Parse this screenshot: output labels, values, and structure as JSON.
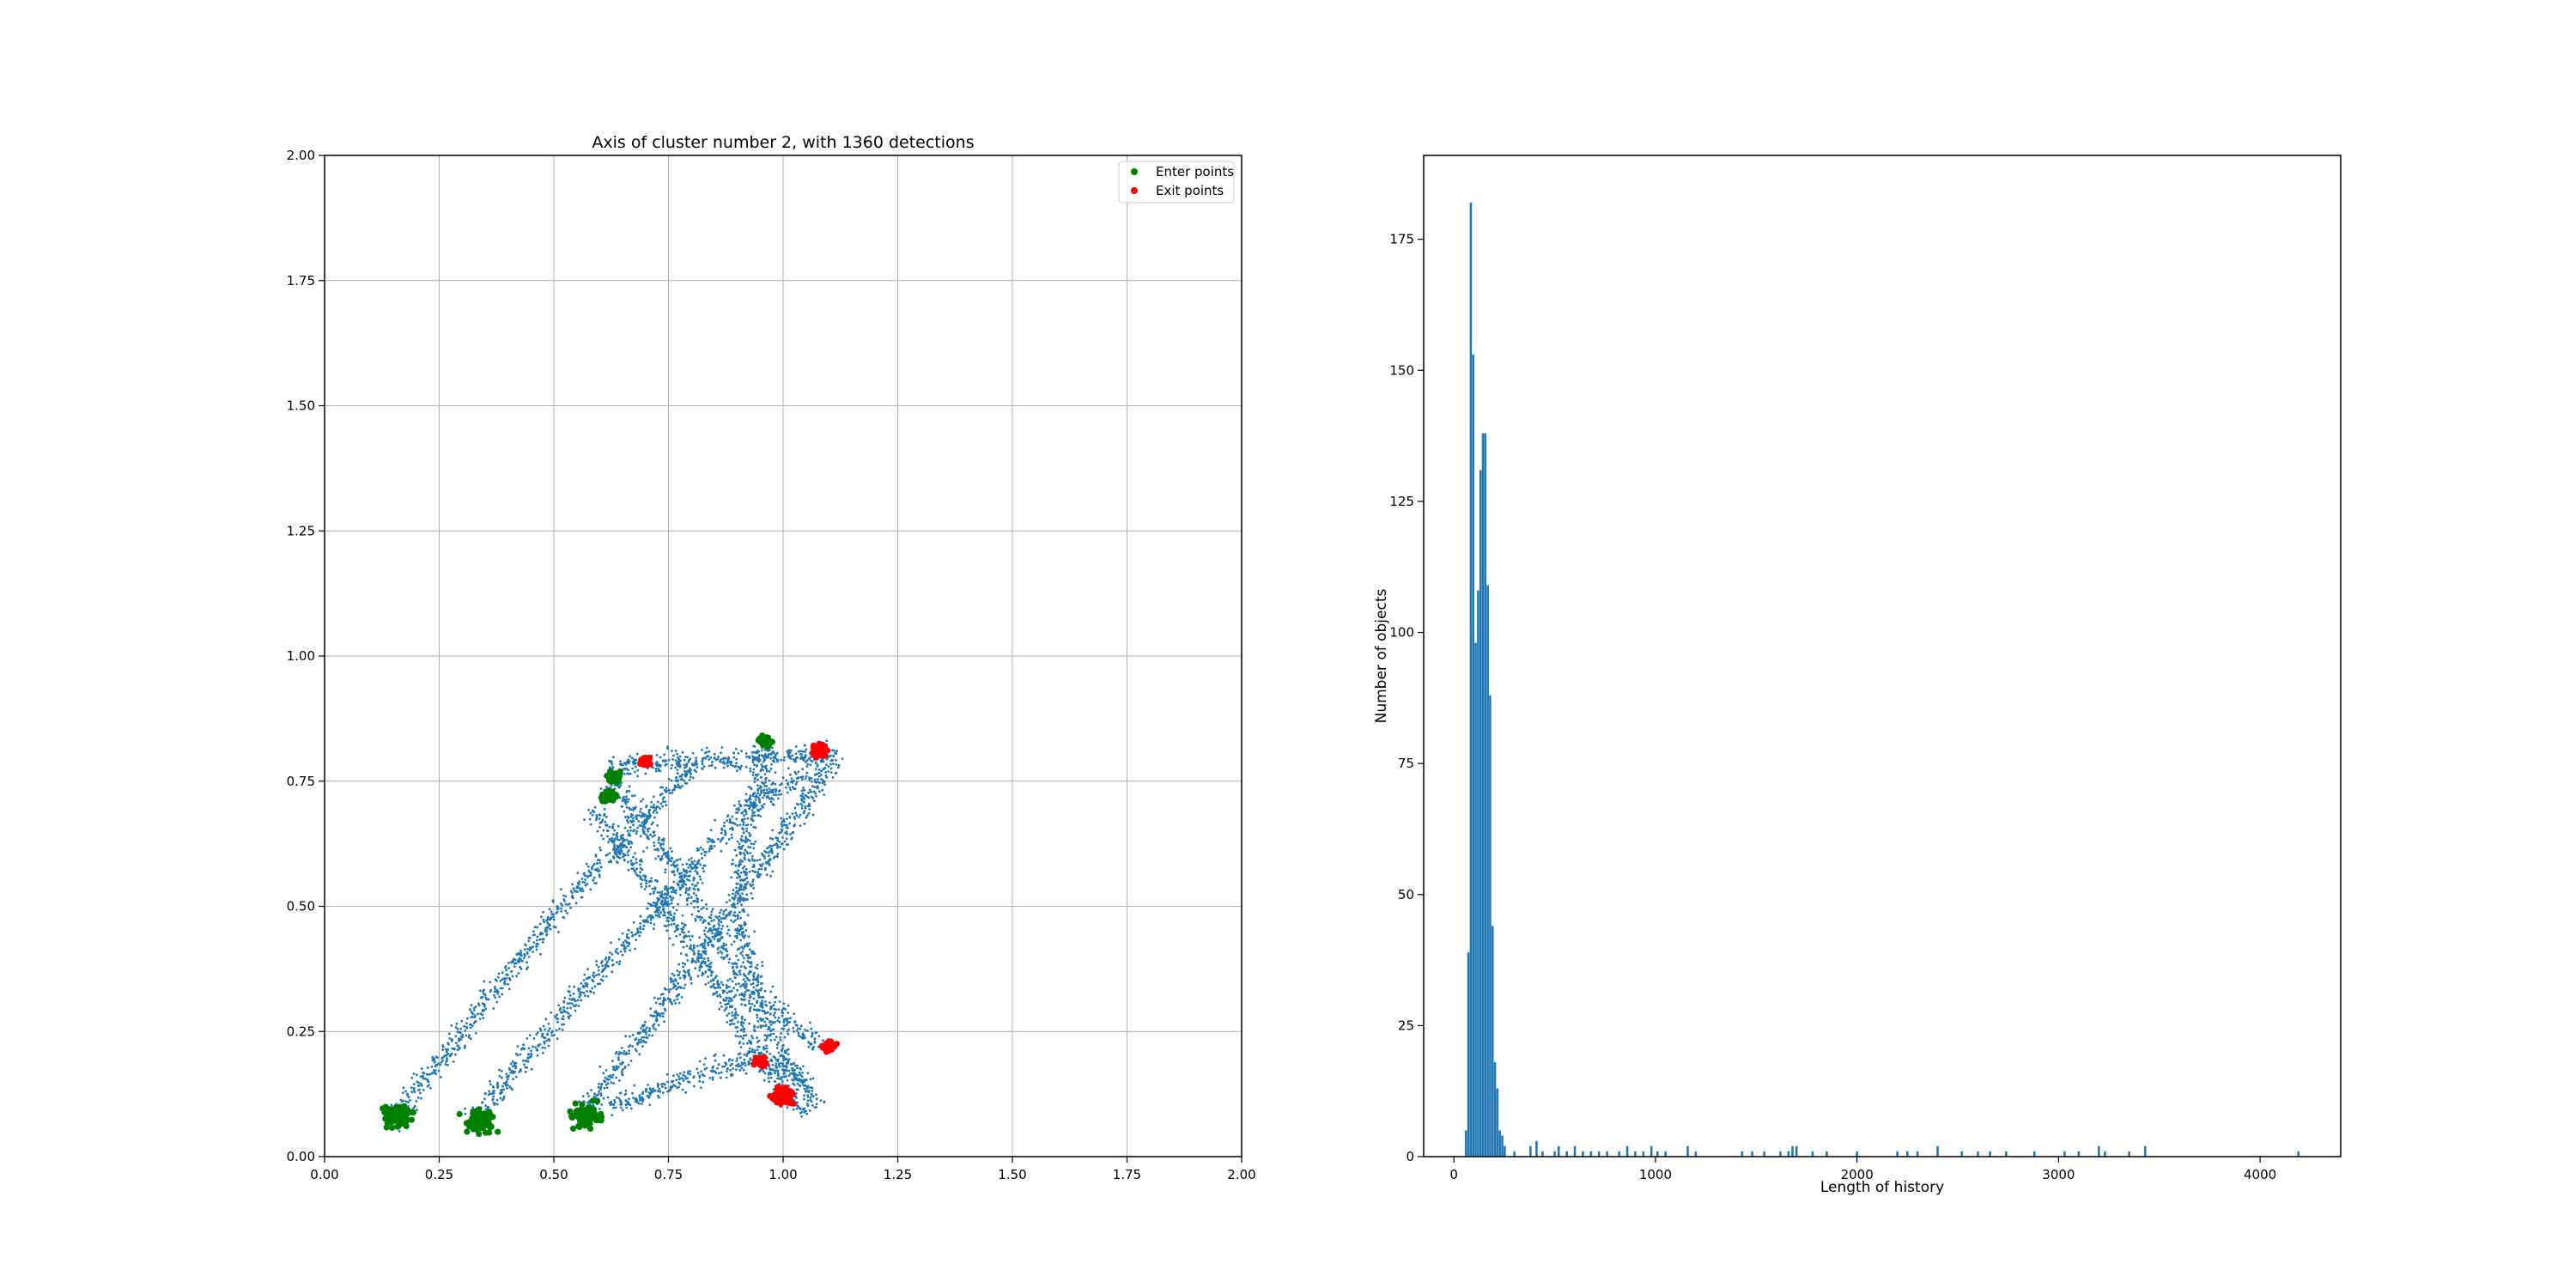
{
  "chart_data": [
    {
      "type": "scatter",
      "title": "Axis of cluster number 2, with 1360 detections",
      "xlabel": "",
      "ylabel": "",
      "xlim": [
        0,
        2
      ],
      "ylim": [
        0,
        2
      ],
      "xticks": [
        "0.00",
        "0.25",
        "0.50",
        "0.75",
        "1.00",
        "1.25",
        "1.50",
        "1.75",
        "2.00"
      ],
      "yticks": [
        "0.00",
        "0.25",
        "0.50",
        "0.75",
        "1.00",
        "1.25",
        "1.50",
        "1.75",
        "2.00"
      ],
      "grid": true,
      "legend_position": "top-right",
      "legend": [
        {
          "label": "Enter points",
          "color": "#008000"
        },
        {
          "label": "Exit points",
          "color": "#ff0000"
        }
      ],
      "trajectory_color": "#1f77b4",
      "trajectory_bands": [
        [
          [
            0.14,
            0.06
          ],
          [
            0.3,
            0.25
          ],
          [
            0.5,
            0.48
          ],
          [
            0.65,
            0.63
          ],
          [
            0.8,
            0.78
          ]
        ],
        [
          [
            0.32,
            0.07
          ],
          [
            0.55,
            0.32
          ],
          [
            0.75,
            0.52
          ],
          [
            0.92,
            0.7
          ],
          [
            1.1,
            0.8
          ]
        ],
        [
          [
            0.55,
            0.07
          ],
          [
            0.7,
            0.25
          ],
          [
            0.85,
            0.45
          ],
          [
            1.0,
            0.64
          ],
          [
            1.12,
            0.81
          ]
        ],
        [
          [
            0.62,
            0.78
          ],
          [
            0.8,
            0.79
          ],
          [
            1.0,
            0.8
          ],
          [
            1.1,
            0.81
          ]
        ],
        [
          [
            0.62,
            0.75
          ],
          [
            0.75,
            0.6
          ],
          [
            0.88,
            0.4
          ],
          [
            1.0,
            0.2
          ],
          [
            1.08,
            0.1
          ]
        ],
        [
          [
            0.97,
            0.82
          ],
          [
            0.92,
            0.65
          ],
          [
            0.9,
            0.48
          ],
          [
            0.95,
            0.32
          ],
          [
            1.08,
            0.22
          ]
        ],
        [
          [
            0.58,
            0.7
          ],
          [
            0.7,
            0.55
          ],
          [
            0.85,
            0.35
          ],
          [
            0.98,
            0.15
          ],
          [
            1.05,
            0.08
          ]
        ],
        [
          [
            0.62,
            0.1
          ],
          [
            0.8,
            0.16
          ],
          [
            0.95,
            0.2
          ],
          [
            1.05,
            0.15
          ]
        ]
      ],
      "enter_clusters": [
        {
          "x": 0.16,
          "y": 0.08,
          "spread": 0.03
        },
        {
          "x": 0.34,
          "y": 0.07,
          "spread": 0.03
        },
        {
          "x": 0.57,
          "y": 0.08,
          "spread": 0.03
        },
        {
          "x": 0.62,
          "y": 0.72,
          "spread": 0.015
        },
        {
          "x": 0.63,
          "y": 0.76,
          "spread": 0.015
        },
        {
          "x": 0.96,
          "y": 0.83,
          "spread": 0.012
        }
      ],
      "exit_clusters": [
        {
          "x": 0.7,
          "y": 0.79,
          "spread": 0.012
        },
        {
          "x": 1.08,
          "y": 0.81,
          "spread": 0.018
        },
        {
          "x": 1.1,
          "y": 0.22,
          "spread": 0.015
        },
        {
          "x": 1.0,
          "y": 0.12,
          "spread": 0.022
        },
        {
          "x": 0.95,
          "y": 0.19,
          "spread": 0.015
        }
      ]
    },
    {
      "type": "bar",
      "title": "",
      "xlabel": "Length of history",
      "ylabel": "Number of objects",
      "xlim": [
        -150,
        4400
      ],
      "ylim": [
        0,
        191
      ],
      "xticks": [
        0,
        1000,
        2000,
        3000,
        4000
      ],
      "yticks": [
        0,
        25,
        50,
        75,
        100,
        125,
        150,
        175
      ],
      "grid": false,
      "bar_color": "#1f77b4",
      "bins": [
        {
          "x": 60,
          "y": 5
        },
        {
          "x": 72,
          "y": 39
        },
        {
          "x": 84,
          "y": 182
        },
        {
          "x": 96,
          "y": 153
        },
        {
          "x": 108,
          "y": 98
        },
        {
          "x": 120,
          "y": 108
        },
        {
          "x": 132,
          "y": 131
        },
        {
          "x": 144,
          "y": 138
        },
        {
          "x": 156,
          "y": 138
        },
        {
          "x": 168,
          "y": 109
        },
        {
          "x": 180,
          "y": 88
        },
        {
          "x": 192,
          "y": 44
        },
        {
          "x": 204,
          "y": 18
        },
        {
          "x": 216,
          "y": 13
        },
        {
          "x": 228,
          "y": 5
        },
        {
          "x": 240,
          "y": 4
        },
        {
          "x": 252,
          "y": 2
        },
        {
          "x": 300,
          "y": 1
        },
        {
          "x": 380,
          "y": 2
        },
        {
          "x": 410,
          "y": 3
        },
        {
          "x": 440,
          "y": 1
        },
        {
          "x": 500,
          "y": 1
        },
        {
          "x": 520,
          "y": 2
        },
        {
          "x": 560,
          "y": 1
        },
        {
          "x": 600,
          "y": 2
        },
        {
          "x": 640,
          "y": 1
        },
        {
          "x": 680,
          "y": 1
        },
        {
          "x": 720,
          "y": 1
        },
        {
          "x": 760,
          "y": 1
        },
        {
          "x": 820,
          "y": 1
        },
        {
          "x": 860,
          "y": 2
        },
        {
          "x": 900,
          "y": 1
        },
        {
          "x": 940,
          "y": 1
        },
        {
          "x": 980,
          "y": 2
        },
        {
          "x": 1010,
          "y": 1
        },
        {
          "x": 1050,
          "y": 1
        },
        {
          "x": 1160,
          "y": 2
        },
        {
          "x": 1200,
          "y": 1
        },
        {
          "x": 1430,
          "y": 1
        },
        {
          "x": 1480,
          "y": 1
        },
        {
          "x": 1540,
          "y": 1
        },
        {
          "x": 1620,
          "y": 1
        },
        {
          "x": 1660,
          "y": 1
        },
        {
          "x": 1680,
          "y": 2
        },
        {
          "x": 1700,
          "y": 2
        },
        {
          "x": 1780,
          "y": 1
        },
        {
          "x": 1850,
          "y": 1
        },
        {
          "x": 2000,
          "y": 1
        },
        {
          "x": 2200,
          "y": 1
        },
        {
          "x": 2250,
          "y": 1
        },
        {
          "x": 2300,
          "y": 1
        },
        {
          "x": 2400,
          "y": 2
        },
        {
          "x": 2520,
          "y": 1
        },
        {
          "x": 2600,
          "y": 1
        },
        {
          "x": 2660,
          "y": 1
        },
        {
          "x": 2740,
          "y": 1
        },
        {
          "x": 2880,
          "y": 1
        },
        {
          "x": 3030,
          "y": 1
        },
        {
          "x": 3100,
          "y": 1
        },
        {
          "x": 3200,
          "y": 2
        },
        {
          "x": 3230,
          "y": 1
        },
        {
          "x": 3350,
          "y": 1
        },
        {
          "x": 3430,
          "y": 2
        },
        {
          "x": 4190,
          "y": 1
        }
      ]
    }
  ]
}
